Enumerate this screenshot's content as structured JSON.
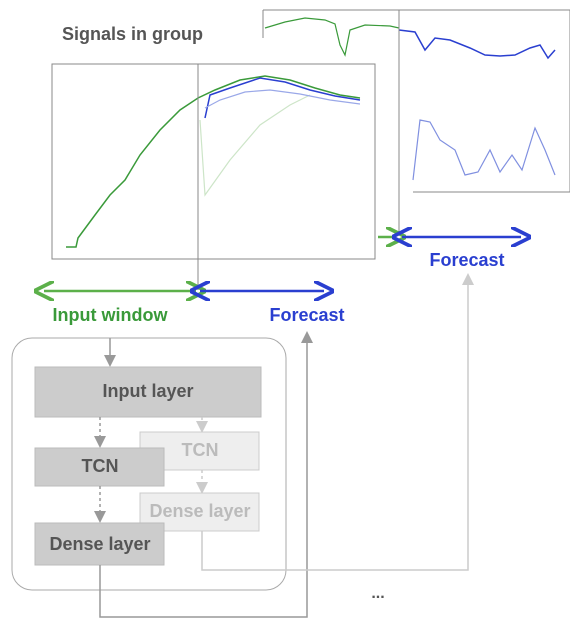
{
  "header": {
    "title": "Signals in group"
  },
  "labels": {
    "input_window": "Input window",
    "forecast_main": "Forecast",
    "forecast_next": "Forecast"
  },
  "nodes": [
    {
      "label": "Input layer"
    },
    {
      "label": "TCN"
    },
    {
      "label": "TCN"
    },
    {
      "label": "Dense layer"
    },
    {
      "label": "Dense layer"
    }
  ],
  "ellipsis": "..."
}
